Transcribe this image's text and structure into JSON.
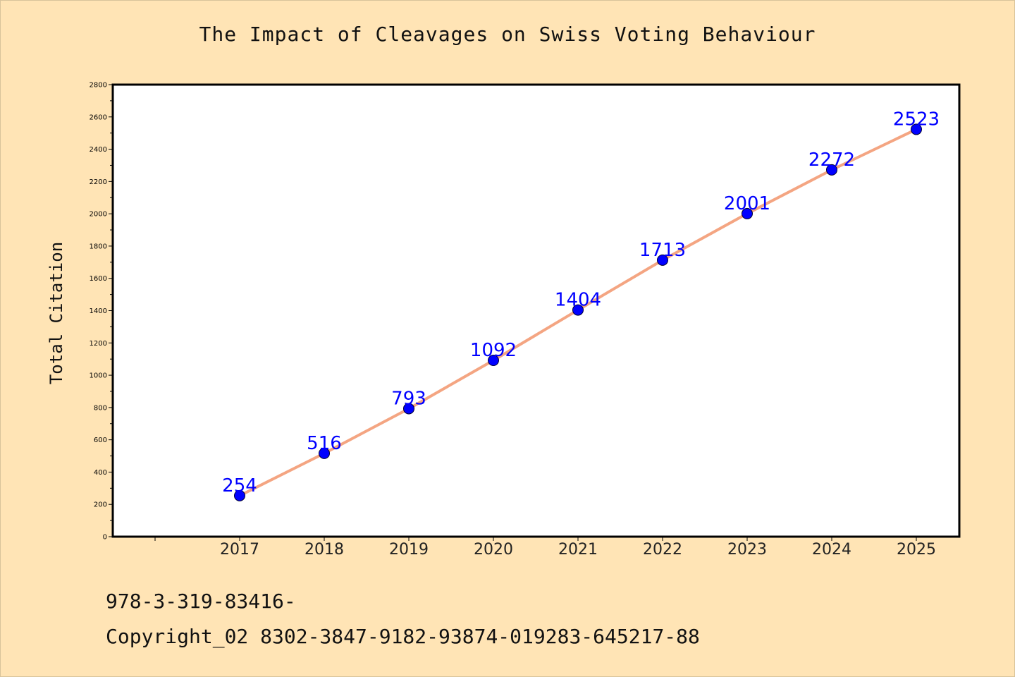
{
  "chart_data": {
    "type": "line",
    "title": "The Impact of Cleavages on Swiss Voting Behaviour",
    "xlabel": "",
    "ylabel": "Total Citation",
    "categories": [
      "2017",
      "2018",
      "2019",
      "2020",
      "2021",
      "2022",
      "2023",
      "2024",
      "2025"
    ],
    "series": [
      {
        "values": [
          254,
          516,
          793,
          1092,
          1404,
          1713,
          2001,
          2272,
          2523
        ]
      }
    ],
    "ylim": [
      0,
      2800
    ],
    "yticks": [
      0,
      200,
      400,
      600,
      800,
      1000,
      1200,
      1400,
      1600,
      1800,
      2000,
      2200,
      2400,
      2600,
      2800
    ],
    "data_labels": true,
    "grid": false,
    "legend": "none",
    "colors": {
      "line": "#f4a582",
      "marker": "#0000ff",
      "data_label": "#0000ff",
      "plot_background": "#ffffff",
      "page_background": "#ffe4b5"
    }
  },
  "footer": {
    "isbn": "978-3-319-83416-",
    "copyright": "Copyright_02 8302-3847-9182-93874-019283-645217-88"
  }
}
